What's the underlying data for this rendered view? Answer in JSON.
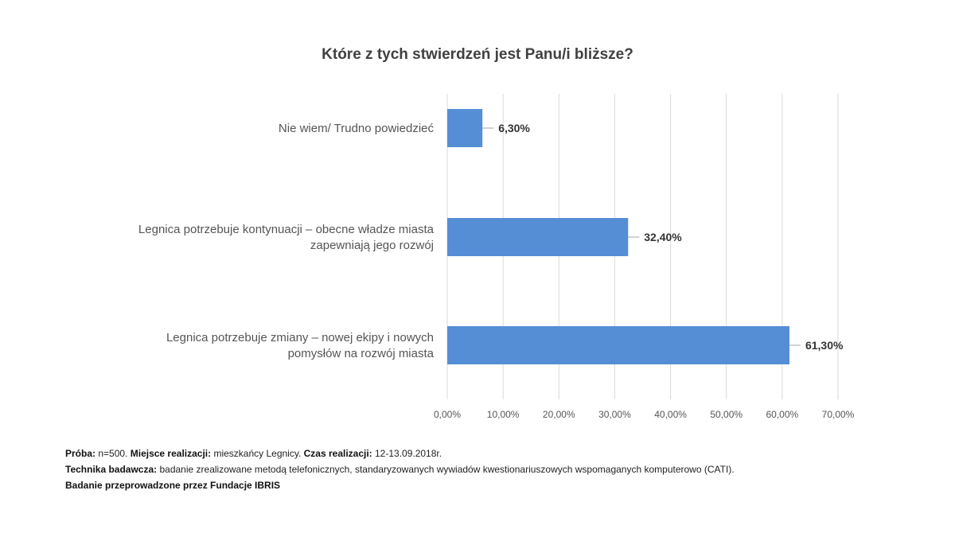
{
  "chart_data": {
    "type": "bar",
    "orientation": "horizontal",
    "title": "Które z tych stwierdzeń jest Panu/i bliższe?",
    "categories": [
      [
        "Nie wiem/ Trudno powiedzieć"
      ],
      [
        "Legnica potrzebuje kontynuacji – obecne władze miasta",
        "zapewniają jego rozwój"
      ],
      [
        "Legnica potrzebuje zmiany – nowej ekipy i nowych",
        "pomysłów na rozwój miasta"
      ]
    ],
    "values": [
      6.3,
      32.4,
      61.3
    ],
    "value_labels": [
      "6,30%",
      "32,40%",
      "61,30%"
    ],
    "xlim": [
      0,
      70
    ],
    "x_ticks": [
      0,
      10,
      20,
      30,
      40,
      50,
      60,
      70
    ],
    "x_tick_labels": [
      "0,00%",
      "10,00%",
      "20,00%",
      "30,00%",
      "40,00%",
      "50,00%",
      "60,00%",
      "70,00%"
    ],
    "grid": true,
    "bar_color": "#558ed5",
    "grid_color": "#d9d9d9"
  },
  "footer": {
    "line1": {
      "k1": "Próba:",
      "v1": " n=500. ",
      "k2": "Miejsce realizacji:",
      "v2": " mieszkańcy Legnicy. ",
      "k3": "Czas realizacji:",
      "v3": " 12-13.09.2018r."
    },
    "line2": {
      "k1": "Technika badawcza:",
      "v1": " badanie zrealizowane metodą telefonicznych, standaryzowanych wywiadów kwestionariuszowych wspomaganych komputerowo (CATI)."
    },
    "line3": "Badanie przeprowadzone przez Fundacje IBRIS"
  }
}
